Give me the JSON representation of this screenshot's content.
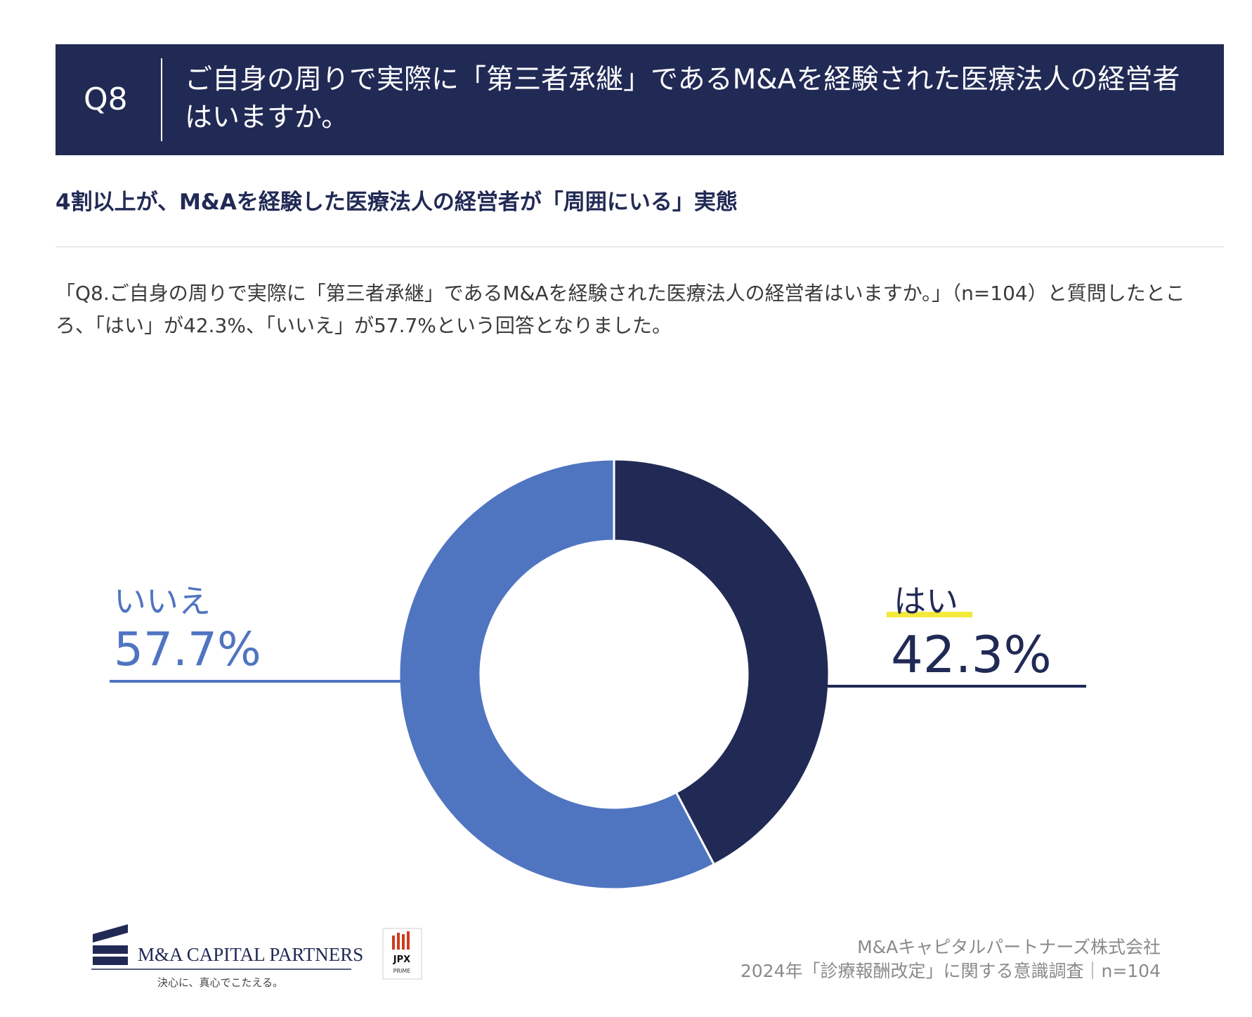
{
  "header": {
    "q_label": "Q8",
    "question": "ご自身の周りで実際に「第三者承継」であるM&Aを経験された医療法人の経営者はいますか。"
  },
  "subtitle": "4割以上が、M&Aを経験した医療法人の経営者が「周囲にいる」実態",
  "description": "「Q8.ご自身の周りで実際に「第三者承継」であるM&Aを経験された医療法人の経営者はいますか。」（n=104）と質問したところ、「はい」が42.3%、「いいえ」が57.7%という回答となりました。",
  "chart_data": {
    "type": "pie",
    "variant": "donut",
    "slices": [
      {
        "label": "はい",
        "value": 42.3,
        "display": "42.3%",
        "color": "#212a55"
      },
      {
        "label": "いいえ",
        "value": 57.7,
        "display": "57.7%",
        "color": "#5075c0"
      }
    ],
    "start": "top",
    "direction": "clockwise",
    "highlight_color": "#f2ea3a"
  },
  "footer": {
    "logo_name": "M&A CAPITAL PARTNERS",
    "logo_tagline": "決心に、真心でこたえる。",
    "jpx_label": "JPX",
    "jpx_sub": "PRIME",
    "company": "M&Aキャピタルパートナーズ株式会社",
    "survey": "2024年「診療報酬改定」に関する意識調査｜n=104"
  }
}
